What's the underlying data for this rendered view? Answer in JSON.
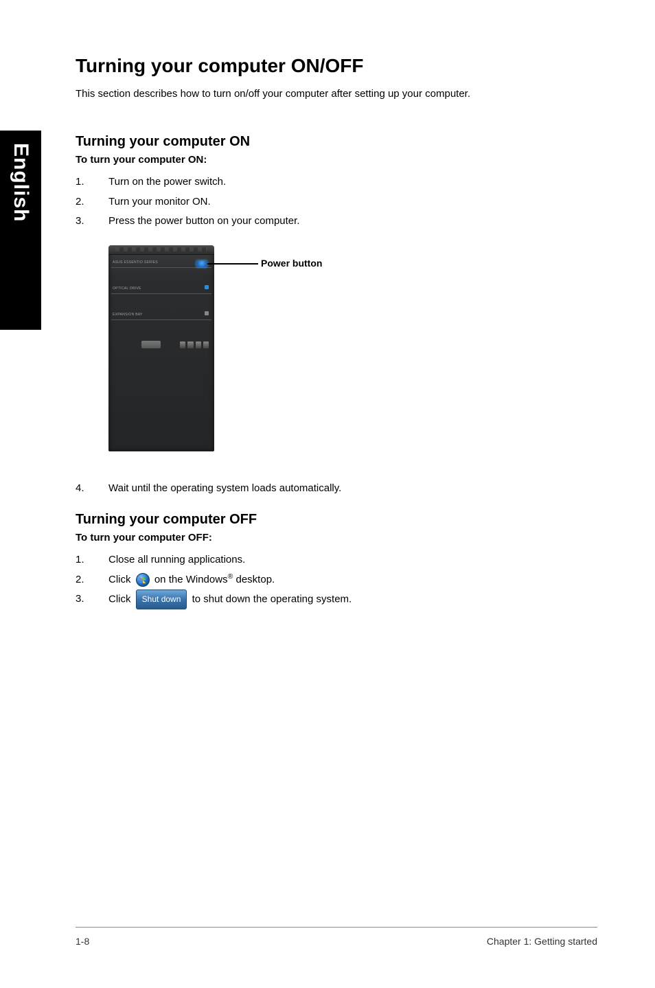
{
  "sideTab": "English",
  "title": "Turning your computer ON/OFF",
  "intro": "This section describes how to turn on/off your computer after setting up your computer.",
  "sectionOn": {
    "heading": "Turning your computer ON",
    "sub": "To turn your computer ON:",
    "steps": [
      "Turn on the power switch.",
      "Turn your monitor ON.",
      "Press the power button on your computer."
    ],
    "step4": "Wait until the operating system loads automatically."
  },
  "figure": {
    "callout": "Power button",
    "towerLabels": {
      "brand": "ASUS ESSENTIO SERIES",
      "optical": "OPTICAL DRIVE",
      "expansion": "EXPANSION BAY"
    },
    "colors": {
      "towerGradTop": "#3a3c3e",
      "towerGradBot": "#232527",
      "powerGlow": "#4aa8ff",
      "calloutLine": "#000000"
    }
  },
  "sectionOff": {
    "heading": "Turning your computer OFF",
    "sub": "To turn your computer OFF:",
    "step1": "Close all running applications.",
    "step2_pre": "Click ",
    "step2_post": " on the Windows",
    "step2_end": " desktop.",
    "step3_pre": "Click ",
    "shutdownLabel": "Shut down",
    "step3_post": " to shut down the operating system."
  },
  "footer": {
    "left": "1-8",
    "right": "Chapter 1: Getting started"
  }
}
